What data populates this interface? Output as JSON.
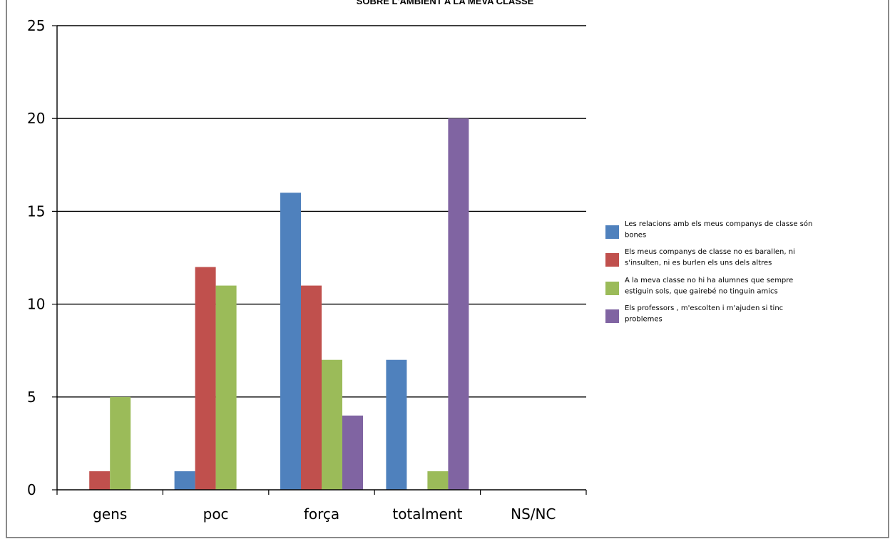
{
  "chart_data": {
    "type": "bar",
    "title": "SOBRE L'AMBIENT A LA MEVA CLASSE",
    "categories": [
      "gens",
      "poc",
      "força",
      "totalment",
      "NS/NC"
    ],
    "ylim": [
      0,
      25
    ],
    "yticks": [
      0,
      5,
      10,
      15,
      20,
      25
    ],
    "grid": true,
    "legend_position": "right",
    "series": [
      {
        "name": "Les relacions amb els meus companys de classe són bones",
        "legend_lines": [
          "Les relacions amb els meus companys de classe són",
          "bones"
        ],
        "color": "#4f81bd",
        "values": [
          0,
          1,
          16,
          7,
          0
        ]
      },
      {
        "name": "Els meus companys de classe no es barallen, ni s'insulten, ni es burlen els uns dels altres",
        "legend_lines": [
          "Els meus companys de classe no es barallen, ni",
          "s'insulten, ni es burlen els uns dels altres"
        ],
        "color": "#c0504d",
        "values": [
          1,
          12,
          11,
          0,
          0
        ]
      },
      {
        "name": "A la meva classe no hi ha alumnes que sempre estiguin sols, que gairebé no tinguin amics",
        "legend_lines": [
          "A la meva classe no hi ha alumnes que sempre",
          "estiguin sols, que gairebé no tinguin amics"
        ],
        "color": "#9bbb59",
        "values": [
          5,
          11,
          7,
          1,
          0
        ]
      },
      {
        "name": "Els professors , m'escolten i m'ajuden si tinc problemes",
        "legend_lines": [
          "Els professors , m'escolten i m'ajuden si tinc",
          "problemes"
        ],
        "color": "#8064a2",
        "values": [
          0,
          0,
          4,
          20,
          0
        ]
      }
    ]
  }
}
